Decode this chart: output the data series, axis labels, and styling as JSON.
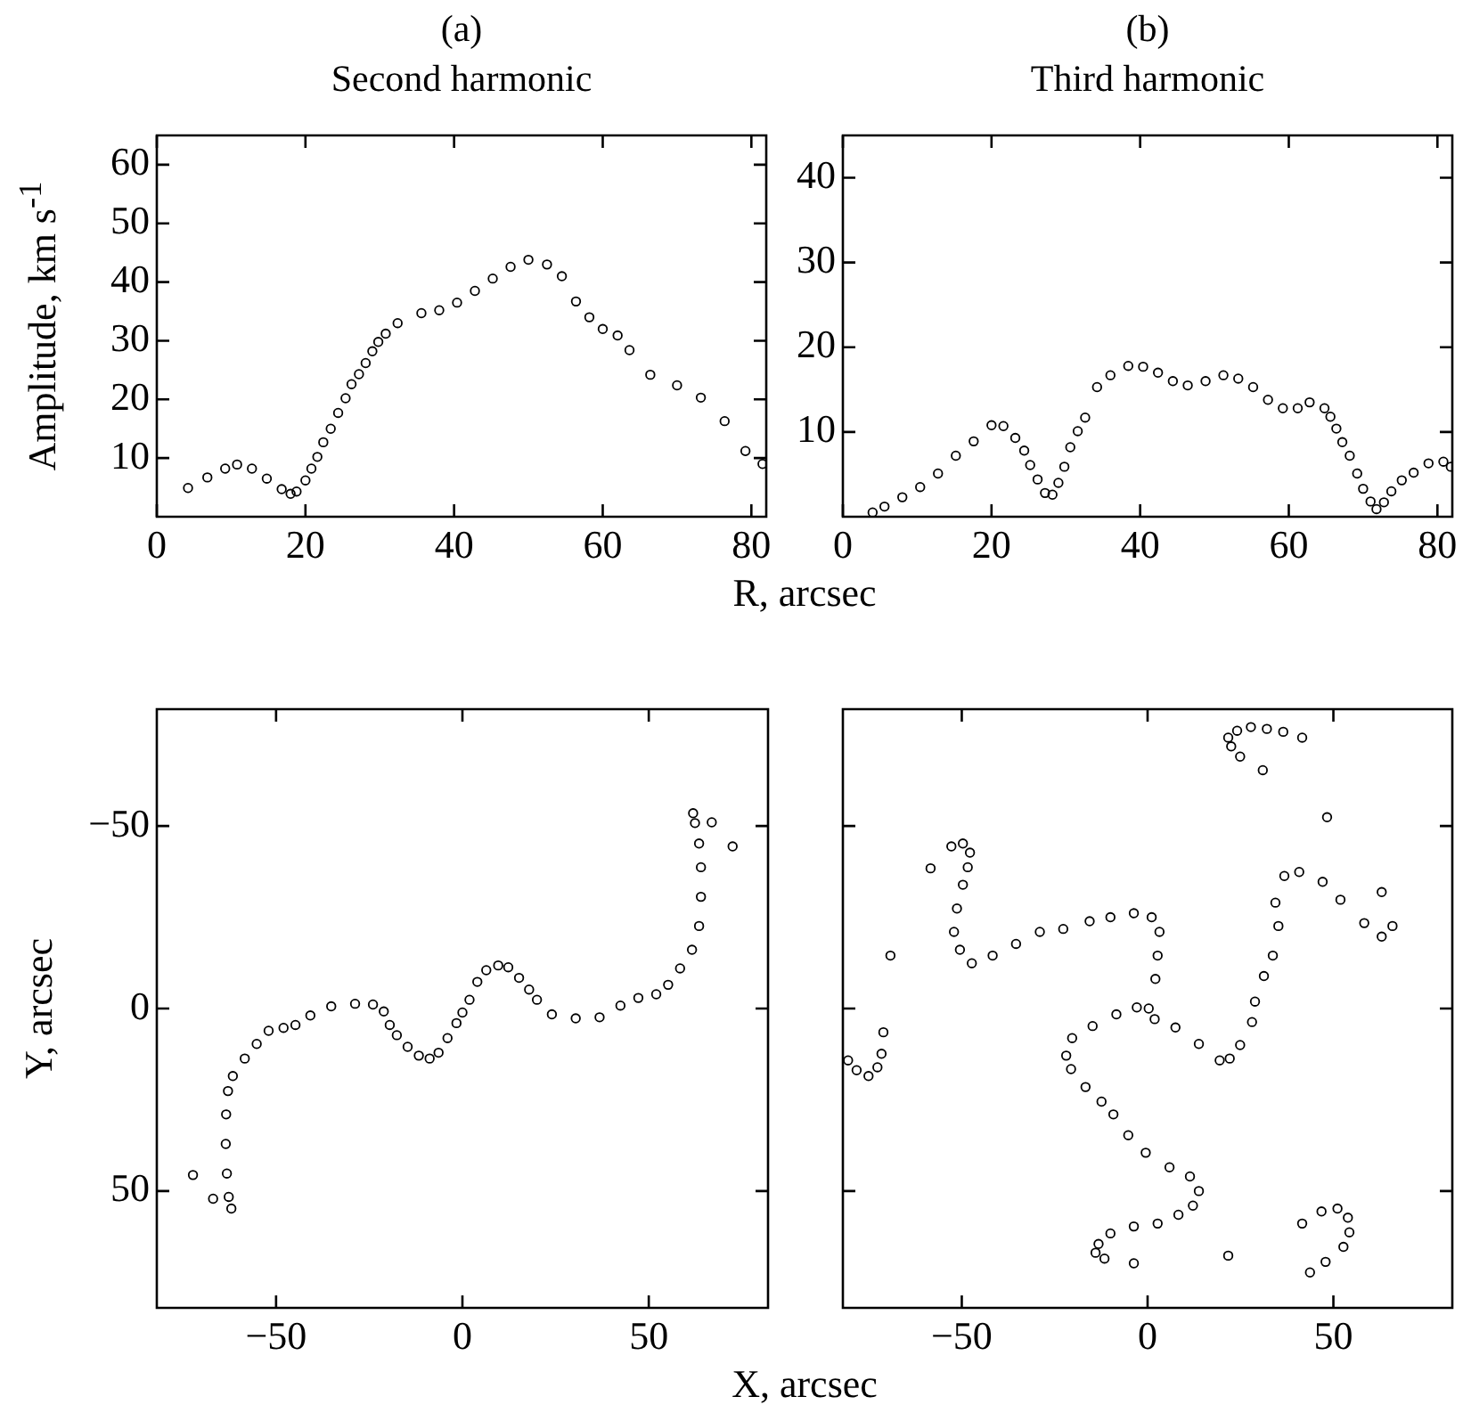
{
  "chart_data": [
    {
      "type": "scatter",
      "title": "(a)",
      "subtitle": "Second harmonic",
      "xlabel": "R, arcsec",
      "ylabel": "Amplitude, km s$^{-1}$",
      "marker": "circle",
      "color": "#000000",
      "x": [
        4.2,
        6.8,
        9.2,
        10.8,
        12.8,
        14.8,
        16.8,
        18,
        18.8,
        20,
        20.8,
        21.6,
        22.4,
        23.4,
        24.4,
        25.4,
        26.2,
        27.2,
        28.1,
        29,
        29.8,
        30.8,
        32.4,
        35.6,
        38,
        40.4,
        42.8,
        45.2,
        47.6,
        50,
        52.5,
        54.5,
        56.4,
        58.2,
        60,
        62,
        63.6,
        66.4,
        70,
        73.2,
        76.4,
        79.2,
        81.5
      ],
      "values": [
        4.9,
        6.7,
        8.2,
        8.9,
        8.2,
        6.5,
        4.7,
        3.9,
        4.3,
        6.2,
        8.2,
        10.2,
        12.7,
        15,
        17.7,
        20.2,
        22.6,
        24.3,
        26.2,
        28.2,
        29.8,
        31.2,
        33,
        34.7,
        35.2,
        36.5,
        38.5,
        40.6,
        42.6,
        43.8,
        43,
        41,
        36.7,
        34,
        32,
        30.9,
        28.4,
        24.2,
        22.4,
        20.3,
        16.3,
        11.2,
        9
      ],
      "xlim": [
        0,
        82
      ],
      "ylim": [
        0,
        65
      ],
      "xticks": [
        0,
        20,
        40,
        60,
        80
      ],
      "yticks": [
        10,
        20,
        30,
        40,
        50,
        60
      ]
    },
    {
      "type": "scatter",
      "title": "(b)",
      "subtitle": "Third harmonic",
      "marker": "circle",
      "color": "#000000",
      "x": [
        4,
        5.6,
        8,
        10.4,
        12.8,
        15.2,
        17.6,
        20,
        21.6,
        23.2,
        24.4,
        25.2,
        26.2,
        27.2,
        28.2,
        29,
        29.8,
        30.6,
        31.6,
        32.6,
        34.2,
        36,
        38.4,
        40.4,
        42.4,
        44.4,
        46.4,
        48.8,
        51.2,
        53.2,
        55.2,
        57.2,
        59.2,
        61.2,
        62.8,
        64.8,
        65.6,
        66.4,
        67.2,
        68.2,
        69.2,
        70,
        71,
        71.8,
        72.8,
        73.8,
        75.2,
        76.8,
        78.8,
        80.8,
        81.8
      ],
      "values": [
        0.5,
        1.2,
        2.3,
        3.5,
        5.1,
        7.2,
        8.9,
        10.8,
        10.7,
        9.3,
        7.8,
        6.1,
        4.4,
        2.8,
        2.6,
        4,
        5.9,
        8.2,
        10.1,
        11.7,
        15.3,
        16.7,
        17.8,
        17.7,
        17,
        16,
        15.5,
        16,
        16.7,
        16.3,
        15.3,
        13.8,
        12.8,
        12.8,
        13.5,
        12.8,
        11.8,
        10.4,
        8.8,
        7.2,
        5.1,
        3.3,
        1.8,
        0.9,
        1.7,
        3,
        4.3,
        5.2,
        6.3,
        6.5,
        5.9
      ],
      "xlim": [
        0,
        82
      ],
      "ylim": [
        0,
        45
      ],
      "xticks": [
        0,
        20,
        40,
        60,
        80
      ],
      "yticks": [
        10,
        20,
        30,
        40
      ]
    },
    {
      "type": "scatter",
      "xlabel": "X, arcsec",
      "ylabel": "Y, arcsec",
      "marker": "circle",
      "color": "#000000",
      "x": [
        -72.3,
        -66.9,
        -62,
        -62.7,
        -63.2,
        -63.5,
        -63.4,
        -62.9,
        -61.6,
        -58.4,
        -55.2,
        -52,
        -48,
        -44.8,
        -40.8,
        -35.2,
        -28.8,
        -24,
        -21.1,
        -19.5,
        -17.6,
        -14.7,
        -11.7,
        -8.8,
        -6.4,
        -4,
        -1.6,
        0,
        1.9,
        4,
        6.4,
        9.6,
        12.3,
        15.2,
        17.9,
        20,
        24,
        30.4,
        36.8,
        42.4,
        47.2,
        52,
        55.2,
        58.4,
        61.6,
        63.5,
        64,
        64,
        63.5,
        62.4,
        61.9,
        66.9,
        72.5
      ],
      "values": [
        45.6,
        52.1,
        54.8,
        51.6,
        45.2,
        37.1,
        29,
        22.6,
        18.5,
        13.7,
        9.7,
        6.1,
        5.3,
        4.5,
        1.9,
        -0.6,
        -1.3,
        -1.1,
        0.8,
        4.5,
        7.3,
        10.5,
        12.9,
        13.7,
        12.1,
        8.1,
        4,
        1.1,
        -2.4,
        -7.3,
        -10.5,
        -11.8,
        -11.3,
        -8.4,
        -5.2,
        -2.4,
        1.6,
        2.7,
        2.4,
        -0.8,
        -2.9,
        -3.9,
        -6.5,
        -11,
        -16.1,
        -22.6,
        -30.6,
        -38.7,
        -45.2,
        -50.8,
        -53.5,
        -51,
        -44.4
      ],
      "xlim": [
        -82,
        82
      ],
      "ylim": [
        82,
        -82
      ],
      "xticks": [
        {
          "value": -50,
          "label": "−50"
        },
        0,
        50
      ],
      "yticks": [
        {
          "value": -50,
          "label": "−50"
        },
        0,
        50
      ]
    },
    {
      "type": "scatter",
      "marker": "circle",
      "color": "#000000",
      "tick_labels": "x",
      "x": [
        41.6,
        36.5,
        32.1,
        27.8,
        24.1,
        21.7,
        22.5,
        24.9,
        31,
        48.3,
        -58.4,
        -52.8,
        -49.7,
        -47.8,
        -48.4,
        -49.7,
        -51.3,
        -52.1,
        -50.5,
        -47.3,
        -41.7,
        -35.4,
        -29,
        -22.7,
        -15.6,
        -10,
        -3.7,
        1.1,
        3.2,
        2.7,
        2.1,
        0.3,
        -69.2,
        -71.1,
        -71.6,
        -72.7,
        -75.1,
        -78.3,
        -80.6,
        -2.9,
        -8.4,
        -14.8,
        -20.3,
        -21.9,
        -20.6,
        -16.7,
        -12.4,
        -9.2,
        -5.2,
        -0.5,
        5.9,
        11.4,
        13.8,
        12.2,
        8.3,
        2.7,
        -3.7,
        -10,
        -13.2,
        -14,
        -11.6,
        -3.7,
        1.9,
        7.5,
        13.8,
        19.4,
        22.1,
        24.9,
        28.1,
        28.9,
        31.3,
        33.7,
        35.2,
        34.4,
        36.8,
        40.8,
        47.1,
        51.9,
        58.3,
        63,
        65.9,
        63,
        21.7,
        41.6,
        46.8,
        51.1,
        53.9,
        54.3,
        52.7,
        47.9,
        43.7
      ],
      "values": [
        -74.2,
        -75.8,
        -76.6,
        -77.1,
        -76.1,
        -74.2,
        -71.8,
        -69,
        -65.3,
        -52.4,
        -38.4,
        -44.4,
        -45.2,
        -42.7,
        -38.7,
        -33.9,
        -27.4,
        -21,
        -16.1,
        -12.4,
        -14.5,
        -17.7,
        -21,
        -21.8,
        -23.9,
        -25,
        -26.1,
        -25,
        -21,
        -14.5,
        -8.1,
        0,
        -14.5,
        6.5,
        12.4,
        16.1,
        18.5,
        16.9,
        14.2,
        -0.3,
        1.6,
        4.8,
        8.1,
        12.9,
        16.6,
        21.5,
        25.5,
        29,
        34.7,
        39.5,
        43.5,
        46,
        50,
        54,
        56.5,
        58.9,
        59.7,
        61.6,
        64.5,
        66.9,
        68.5,
        69.8,
        2.9,
        5.2,
        9.7,
        14.2,
        13.7,
        10,
        3.7,
        -1.9,
        -8.9,
        -14.5,
        -22.6,
        -29,
        -36.3,
        -37.4,
        -34.7,
        -29.8,
        -23.4,
        -19.7,
        -22.6,
        -31.9,
        67.7,
        58.9,
        55.6,
        54.8,
        57.3,
        61.3,
        65.3,
        69.4,
        72.3
      ],
      "xlim": [
        -82,
        82
      ],
      "ylim": [
        82,
        -82
      ],
      "xticks": [
        {
          "value": -50,
          "label": "−50"
        },
        0,
        50
      ],
      "yticks": [
        -50,
        0,
        50
      ]
    }
  ]
}
